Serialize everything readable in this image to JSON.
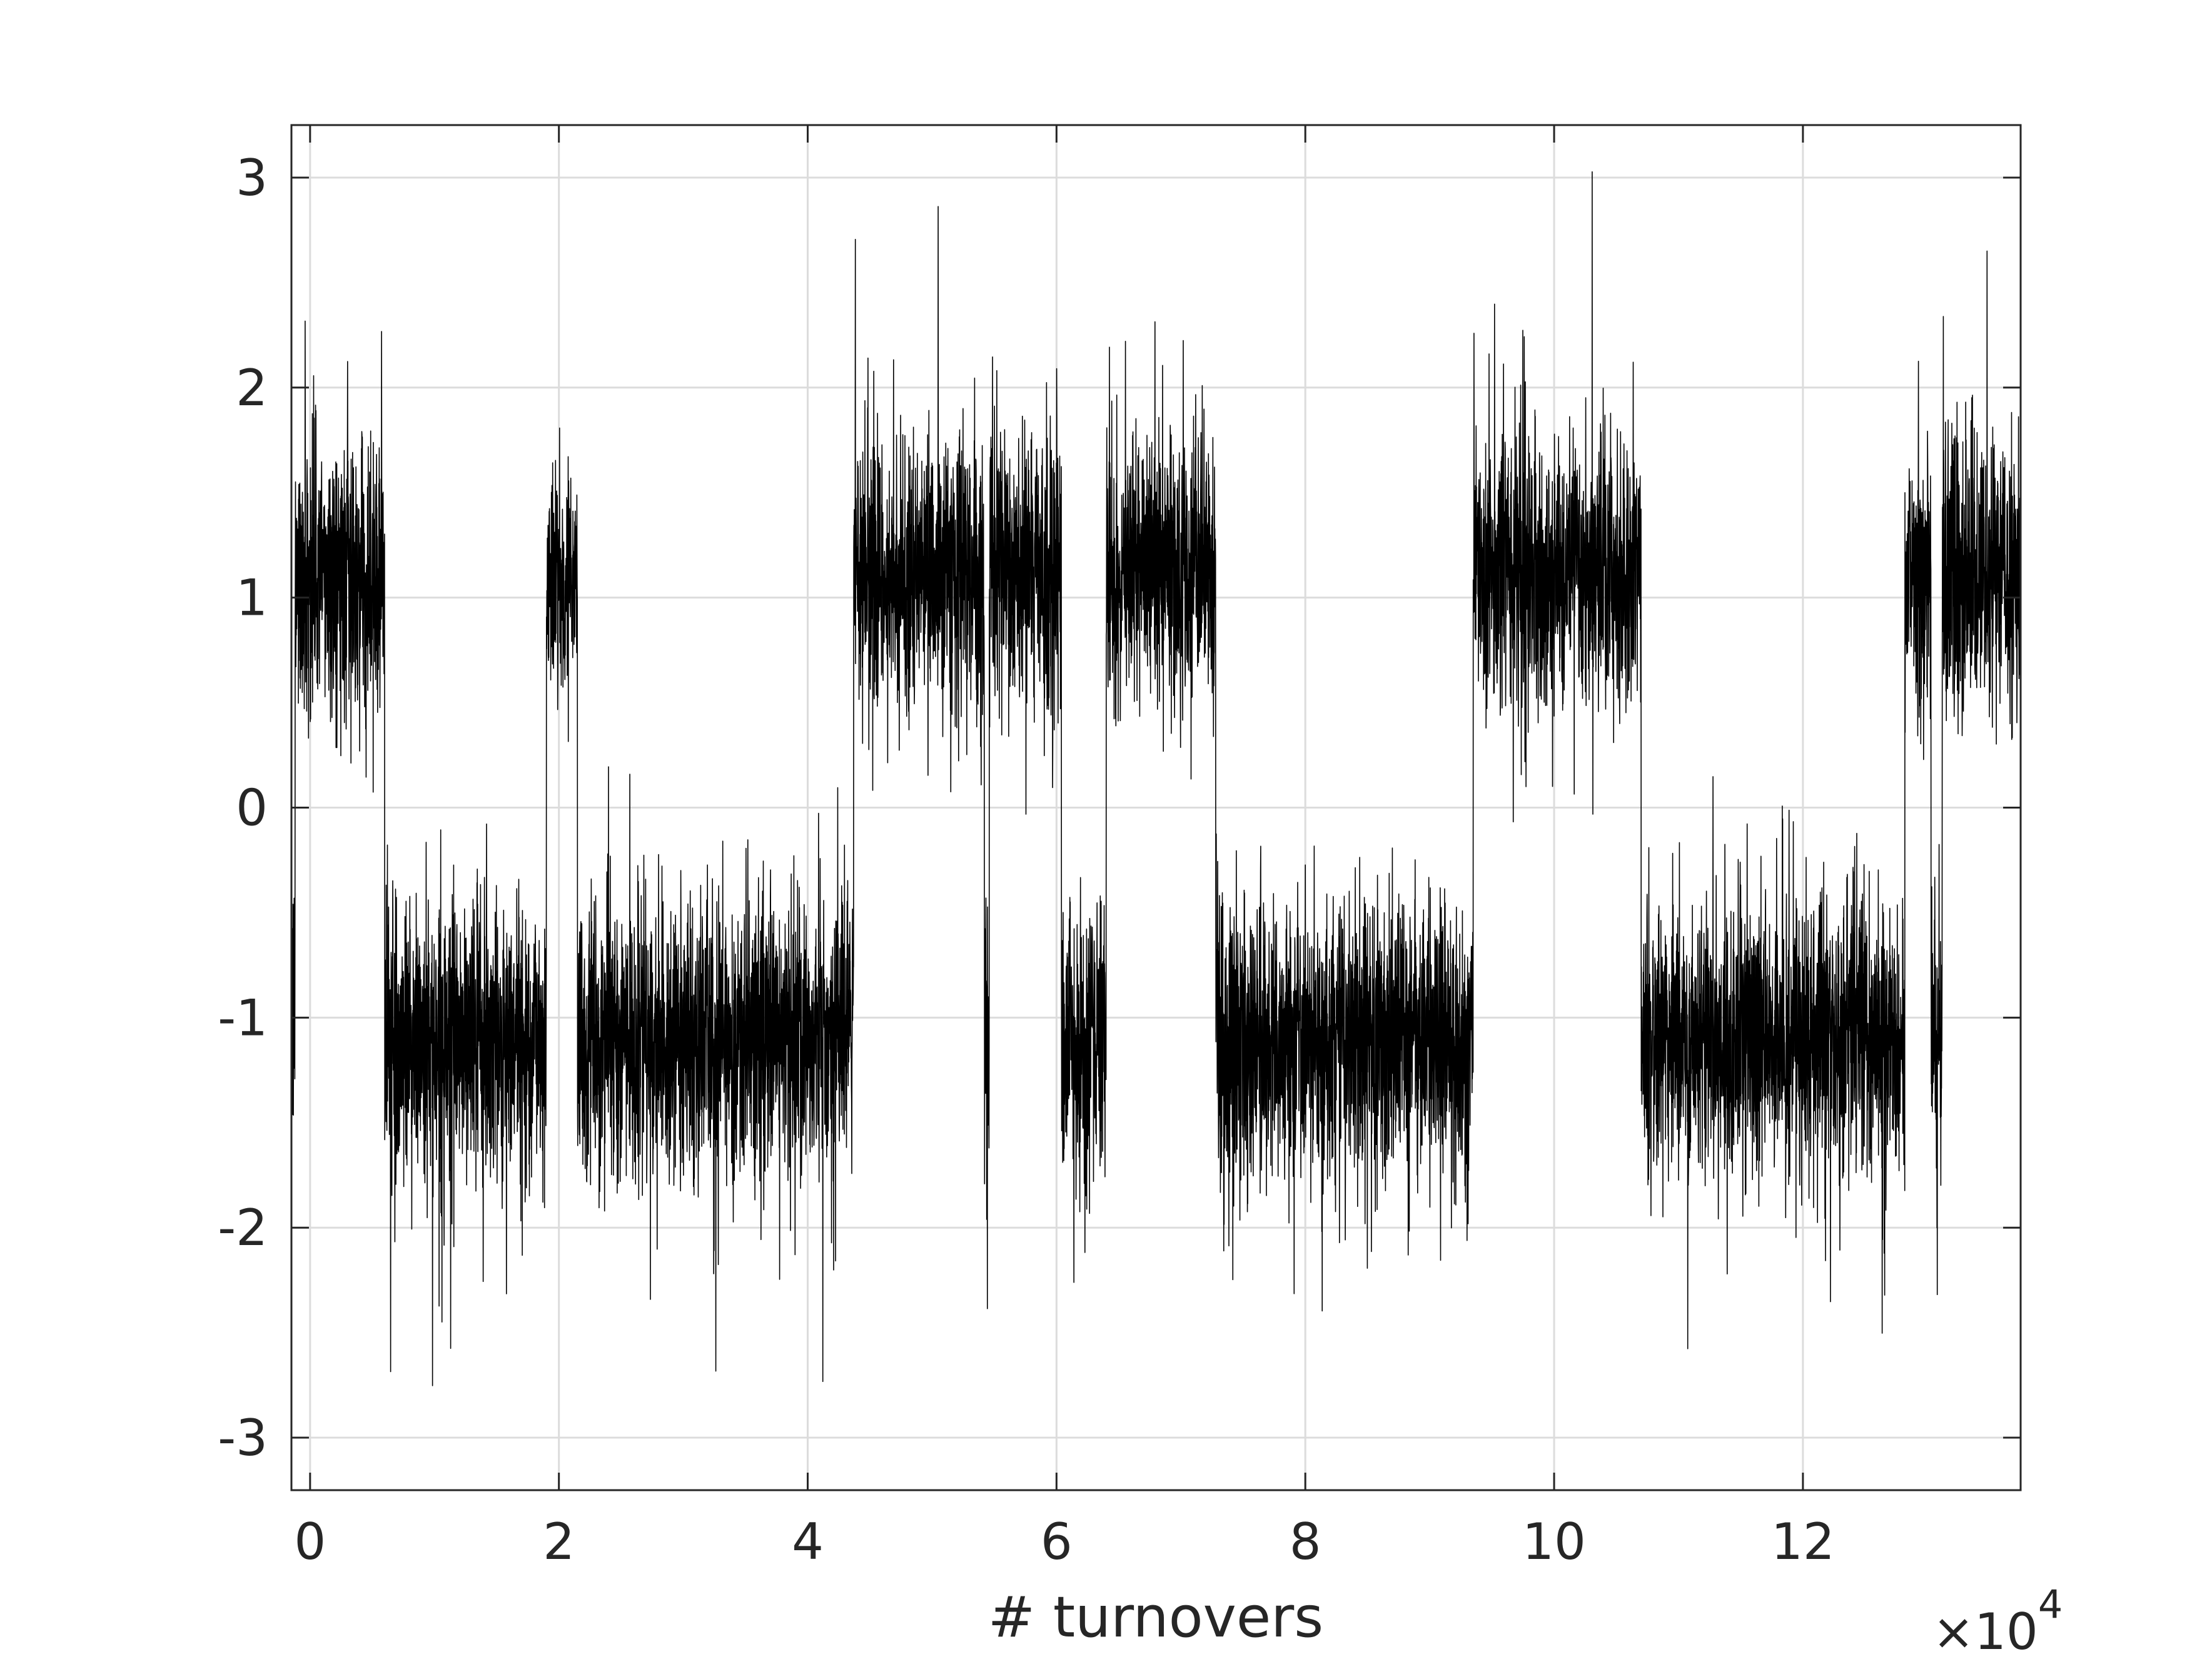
{
  "chart_data": {
    "type": "line",
    "title": "",
    "xlabel": "# turnovers",
    "ylabel": "",
    "x_multiplier_label": "×10",
    "x_multiplier_exponent": "4",
    "xlim": [
      -0.15,
      13.75
    ],
    "ylim": [
      -3.25,
      3.25
    ],
    "xticks": [
      0,
      2,
      4,
      6,
      8,
      10,
      12
    ],
    "xtick_labels": [
      "0",
      "2",
      "4",
      "6",
      "8",
      "10",
      "12"
    ],
    "yticks": [
      -3,
      -2,
      -1,
      0,
      1,
      2,
      3
    ],
    "ytick_labels": [
      "-3",
      "-2",
      "-1",
      "0",
      "1",
      "2",
      "3"
    ],
    "grid": true,
    "line_color": "#000000",
    "noise_std": 0.33,
    "series": [
      {
        "segments": [
          {
            "x_start": -0.15,
            "x_end": -0.12,
            "mean": -1.0
          },
          {
            "x_start": -0.12,
            "x_end": 0.6,
            "mean": 1.1
          },
          {
            "x_start": 0.6,
            "x_end": 1.9,
            "mean": -1.1
          },
          {
            "x_start": 1.9,
            "x_end": 2.15,
            "mean": 1.1
          },
          {
            "x_start": 2.15,
            "x_end": 4.37,
            "mean": -1.1
          },
          {
            "x_start": 4.37,
            "x_end": 5.42,
            "mean": 1.1
          },
          {
            "x_start": 5.42,
            "x_end": 5.46,
            "mean": -1.1
          },
          {
            "x_start": 5.46,
            "x_end": 6.04,
            "mean": 1.1
          },
          {
            "x_start": 6.04,
            "x_end": 6.4,
            "mean": -1.1
          },
          {
            "x_start": 6.4,
            "x_end": 7.28,
            "mean": 1.1
          },
          {
            "x_start": 7.28,
            "x_end": 9.35,
            "mean": -1.1
          },
          {
            "x_start": 9.35,
            "x_end": 10.7,
            "mean": 1.1
          },
          {
            "x_start": 10.7,
            "x_end": 12.82,
            "mean": -1.1
          },
          {
            "x_start": 12.82,
            "x_end": 13.03,
            "mean": 1.1
          },
          {
            "x_start": 13.03,
            "x_end": 13.12,
            "mean": -1.1
          },
          {
            "x_start": 13.12,
            "x_end": 13.75,
            "mean": 1.1
          }
        ]
      }
    ]
  }
}
